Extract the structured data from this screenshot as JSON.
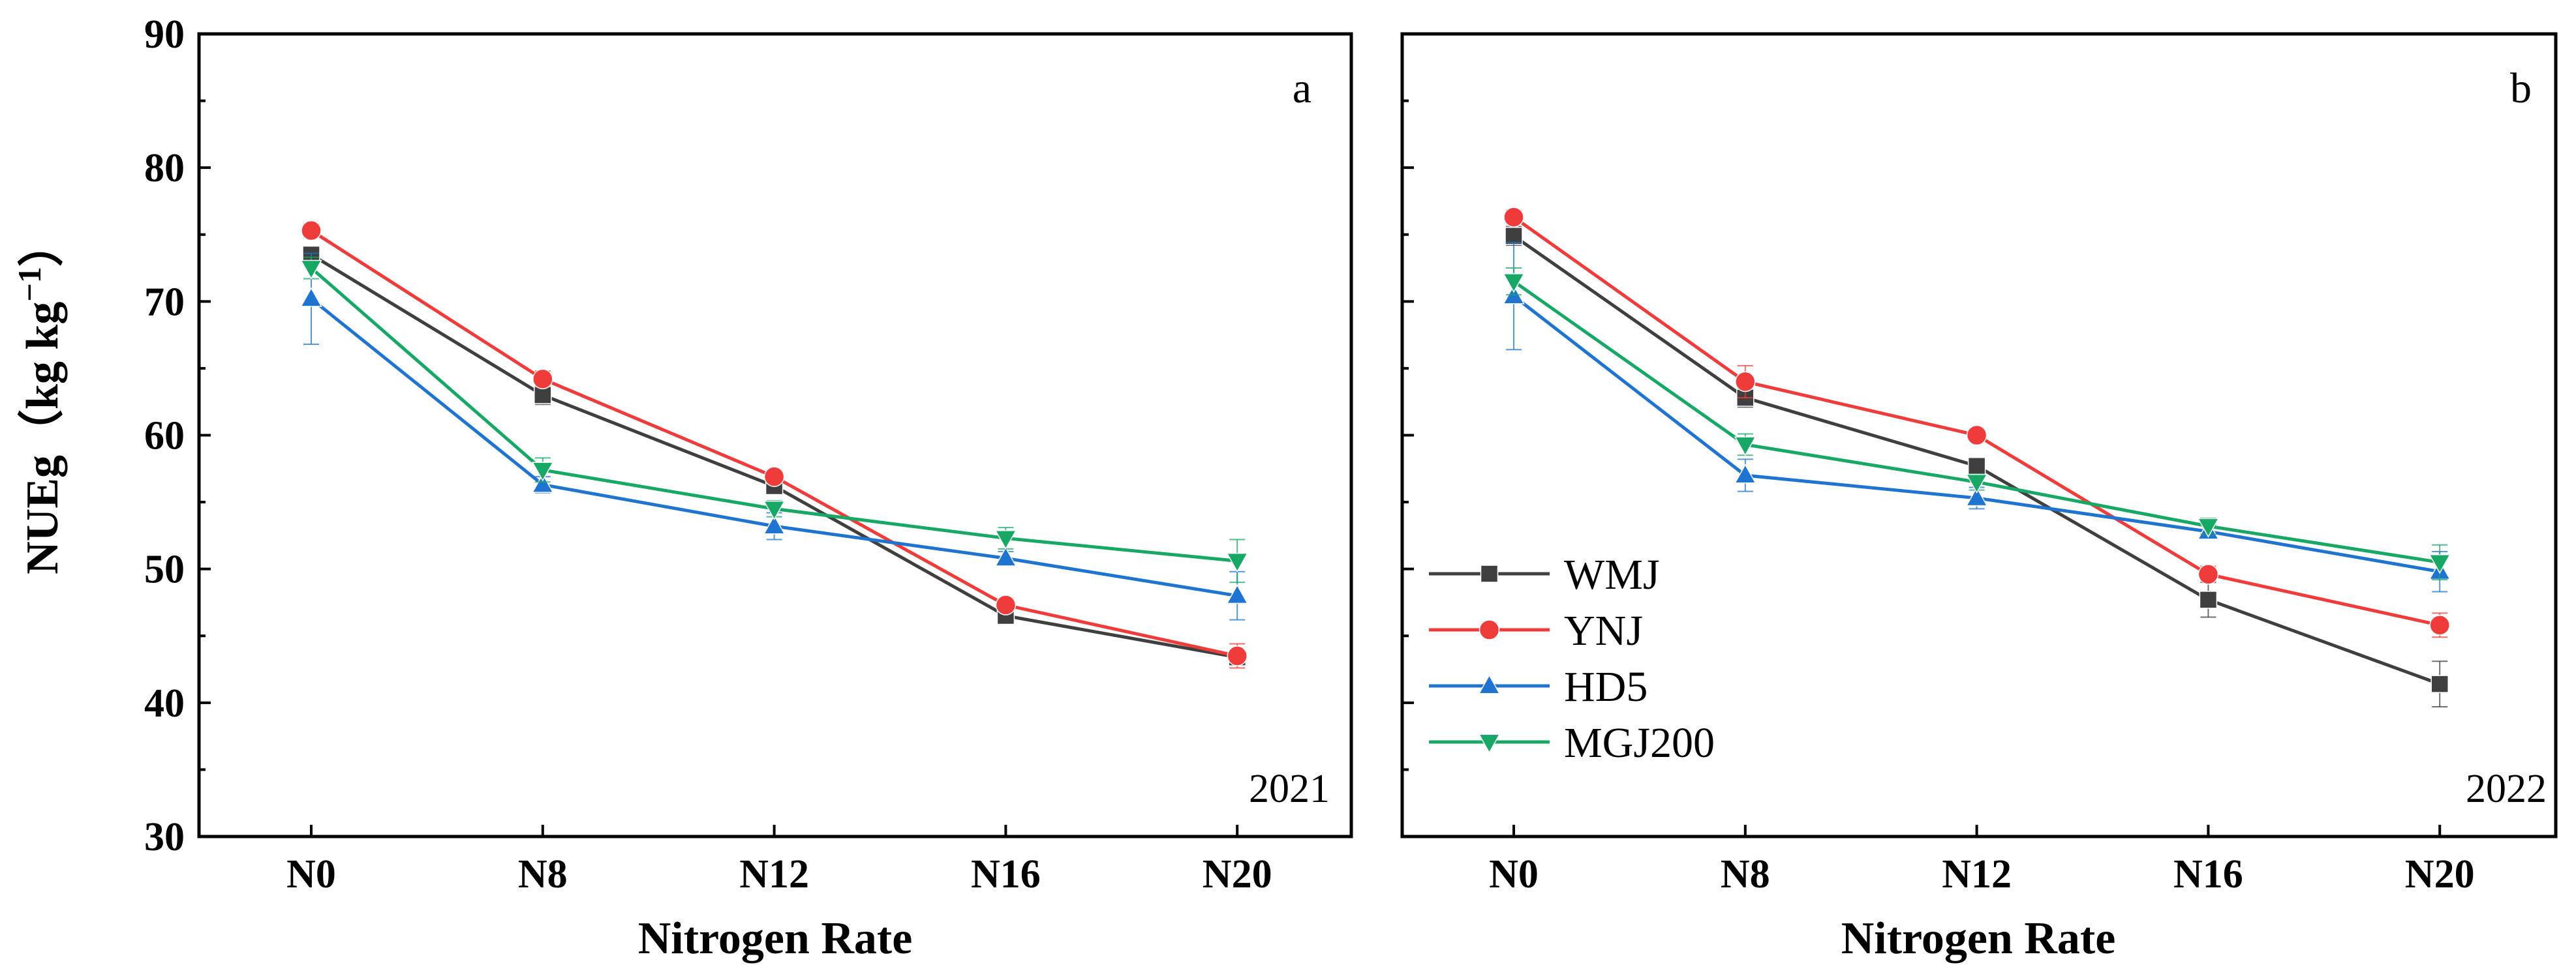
{
  "chart_data": [
    {
      "type": "line",
      "panel_label": "a",
      "year_label": "2021",
      "xlabel": "Nitrogen Rate",
      "ylabel_main": "NUEg（kg kg",
      "ylabel_sup": "−1",
      "ylabel_end": "）",
      "categories": [
        "N0",
        "N8",
        "N12",
        "N16",
        "N20"
      ],
      "ylim": [
        30,
        90
      ],
      "yticks": [
        30,
        40,
        50,
        60,
        70,
        80,
        90
      ],
      "series": [
        {
          "name": "WMJ",
          "color": "#3f3f3f",
          "marker": "square",
          "values": [
            73.5,
            63.0,
            56.2,
            46.5,
            43.4
          ],
          "errors": [
            0.6,
            0.7,
            0.6,
            0.4,
            0.5
          ]
        },
        {
          "name": "YNJ",
          "color": "#f03b3b",
          "marker": "circle",
          "values": [
            75.3,
            64.2,
            56.9,
            47.3,
            43.5
          ],
          "errors": [
            0.5,
            0.6,
            0.5,
            0.5,
            0.9
          ]
        },
        {
          "name": "HD5",
          "color": "#1e74d0",
          "marker": "triangle-up",
          "values": [
            70.2,
            56.3,
            53.2,
            50.8,
            48.0
          ],
          "errors": [
            3.4,
            0.6,
            1.0,
            0.5,
            1.8
          ]
        },
        {
          "name": "MGJ200",
          "color": "#17a865",
          "marker": "triangle-down",
          "values": [
            72.5,
            57.4,
            54.5,
            52.3,
            50.6
          ],
          "errors": [
            0.8,
            0.9,
            0.6,
            0.8,
            1.6
          ]
        }
      ]
    },
    {
      "type": "line",
      "panel_label": "b",
      "year_label": "2022",
      "xlabel": "Nitrogen Rate",
      "categories": [
        "N0",
        "N8",
        "N12",
        "N16",
        "N20"
      ],
      "ylim": [
        30,
        90
      ],
      "yticks": [
        30,
        40,
        50,
        60,
        70,
        80,
        90
      ],
      "series": [
        {
          "name": "WMJ",
          "color": "#3f3f3f",
          "marker": "square",
          "values": [
            74.9,
            62.8,
            57.7,
            47.7,
            41.4
          ],
          "errors": [
            0.7,
            0.7,
            0.6,
            1.3,
            1.7
          ]
        },
        {
          "name": "YNJ",
          "color": "#f03b3b",
          "marker": "circle",
          "values": [
            76.3,
            64.0,
            60.0,
            49.6,
            45.8
          ],
          "errors": [
            0.5,
            1.2,
            0.4,
            0.6,
            0.9
          ]
        },
        {
          "name": "HD5",
          "color": "#1e74d0",
          "marker": "triangle-up",
          "values": [
            70.4,
            57.0,
            55.3,
            52.8,
            49.8
          ],
          "errors": [
            4.0,
            1.2,
            0.8,
            0.5,
            1.5
          ]
        },
        {
          "name": "MGJ200",
          "color": "#17a865",
          "marker": "triangle-down",
          "values": [
            71.5,
            59.3,
            56.5,
            53.2,
            50.5
          ],
          "errors": [
            1.0,
            0.8,
            0.6,
            0.6,
            1.3
          ]
        }
      ]
    }
  ],
  "legend": {
    "location": "lower-left of panel b",
    "items": [
      {
        "label": "WMJ",
        "color": "#3f3f3f",
        "marker": "square"
      },
      {
        "label": "YNJ",
        "color": "#f03b3b",
        "marker": "circle"
      },
      {
        "label": "HD5",
        "color": "#1e74d0",
        "marker": "triangle-up"
      },
      {
        "label": "MGJ200",
        "color": "#17a865",
        "marker": "triangle-down"
      }
    ]
  }
}
